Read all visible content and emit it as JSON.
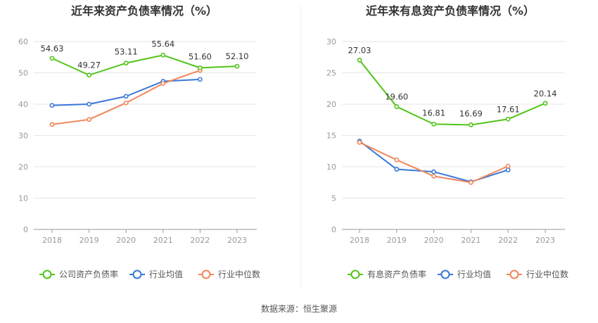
{
  "footer": {
    "source": "数据来源：恒生聚源"
  },
  "chart_data": [
    {
      "type": "line",
      "title": "近年来资产负债率情况（%）",
      "categories": [
        "2018",
        "2019",
        "2020",
        "2021",
        "2022",
        "2023"
      ],
      "ylim": [
        0,
        60
      ],
      "yticks": [
        0,
        10,
        20,
        30,
        40,
        50,
        60
      ],
      "grid": true,
      "legend_position": "bottom",
      "series": [
        {
          "name": "公司资产负债率",
          "color": "#52c41a",
          "values": [
            54.63,
            49.27,
            53.11,
            55.64,
            51.6,
            52.1
          ],
          "labels": [
            "54.63",
            "49.27",
            "53.11",
            "55.64",
            "51.60",
            "52.10"
          ]
        },
        {
          "name": "行业均值",
          "color": "#3a78d8",
          "values": [
            39.6,
            40.0,
            42.5,
            47.3,
            47.9,
            null
          ]
        },
        {
          "name": "行业中位数",
          "color": "#f0875a",
          "values": [
            33.5,
            35.1,
            40.4,
            46.6,
            50.8,
            null
          ]
        }
      ]
    },
    {
      "type": "line",
      "title": "近年来有息资产负债率情况（%）",
      "categories": [
        "2018",
        "2019",
        "2020",
        "2021",
        "2022",
        "2023"
      ],
      "ylim": [
        0,
        30
      ],
      "yticks": [
        0,
        5,
        10,
        15,
        20,
        25,
        30
      ],
      "grid": true,
      "legend_position": "bottom",
      "series": [
        {
          "name": "有息资产负债率",
          "color": "#52c41a",
          "values": [
            27.03,
            19.6,
            16.81,
            16.69,
            17.61,
            20.14
          ],
          "labels": [
            "27.03",
            "19.60",
            "16.81",
            "16.69",
            "17.61",
            "20.14"
          ]
        },
        {
          "name": "行业均值",
          "color": "#3a78d8",
          "values": [
            14.1,
            9.6,
            9.2,
            7.6,
            9.5,
            null
          ]
        },
        {
          "name": "行业中位数",
          "color": "#f0875a",
          "values": [
            13.9,
            11.1,
            8.5,
            7.5,
            10.1,
            null
          ]
        }
      ]
    }
  ]
}
